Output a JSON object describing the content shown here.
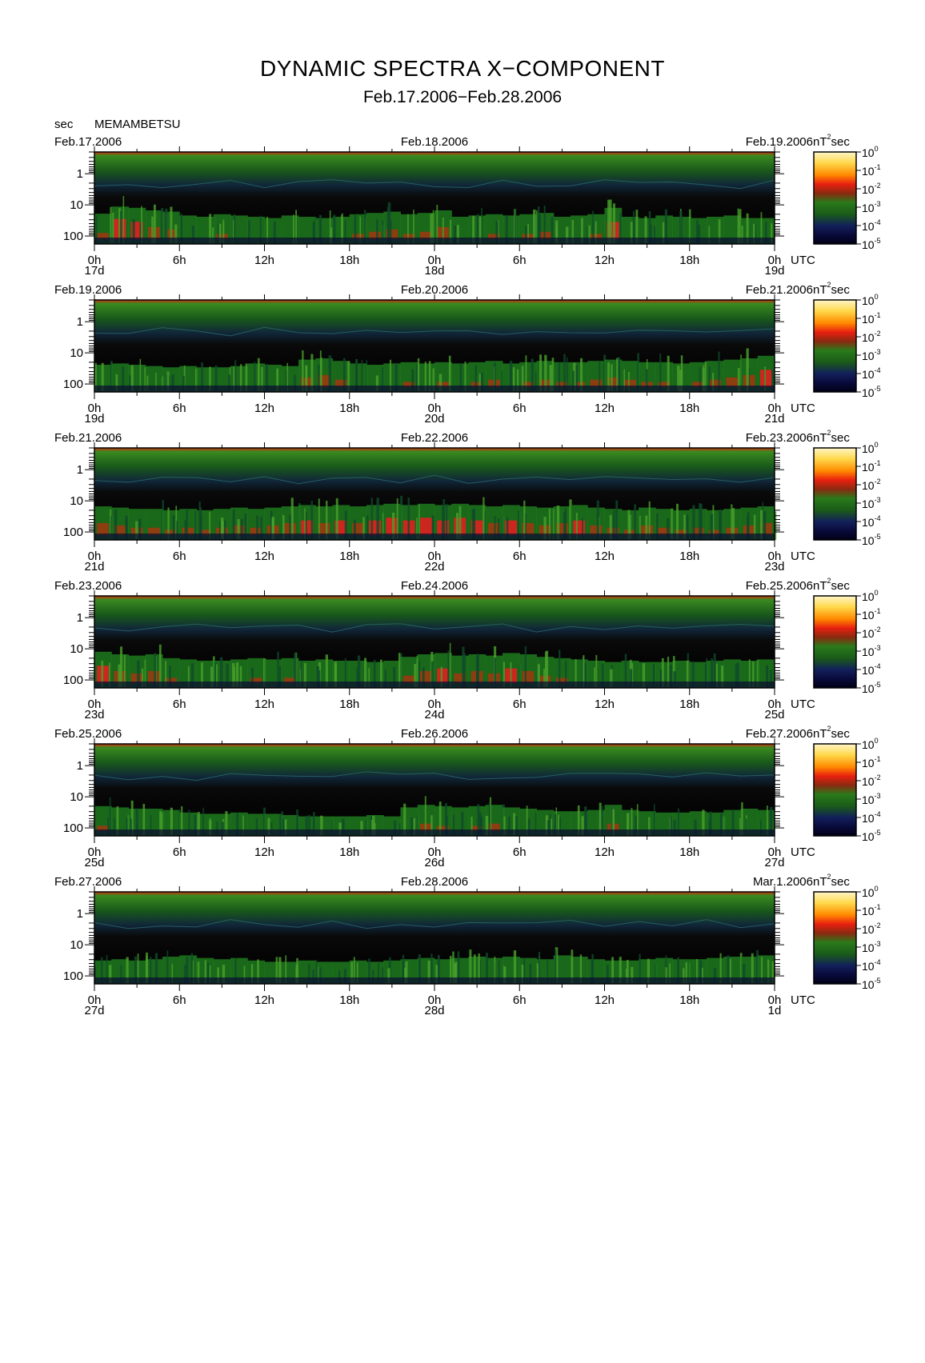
{
  "title": "DYNAMIC SPECTRA X−COMPONENT",
  "subtitle": "Feb.17.2006−Feb.28.2006",
  "y_unit_label": "sec",
  "station": "MEMAMBETSU",
  "colorbar_unit": "nT",
  "colorbar_unit_exp": "2",
  "colorbar_unit_suffix": "sec",
  "x_unit_label": "UTC",
  "colors": {
    "background": "#000000",
    "colormap": [
      "#0a0a3c",
      "#12205a",
      "#0f4a2a",
      "#1f7a1f",
      "#4aa02a",
      "#9a3a10",
      "#e02020",
      "#ff6a00",
      "#ffb000",
      "#ffe070",
      "#fff6c8"
    ]
  },
  "chart_data": [
    {
      "type": "heatmap",
      "left_date": "Feb.17.2006",
      "mid_date": "Feb.18.2006",
      "right_date": "Feb.19.2006",
      "x_ticks": [
        "0h",
        "6h",
        "12h",
        "18h",
        "0h",
        "6h",
        "12h",
        "18h",
        "0h"
      ],
      "day_labels": [
        "17d",
        "18d",
        "19d"
      ],
      "y_ticks": [
        "1",
        "10",
        "100"
      ],
      "ylim": [
        0.2,
        180
      ],
      "colorbar_ticks": [
        "10^0",
        "10^-1",
        "10^-2",
        "10^-3",
        "10^-4",
        "10^-5"
      ],
      "activity": [
        0.62,
        0.9,
        0.85,
        0.75,
        0.7,
        0.55,
        0.5,
        0.6,
        0.55,
        0.5,
        0.45,
        0.55,
        0.5,
        0.45,
        0.5,
        0.6,
        0.65,
        0.7,
        0.6,
        0.65,
        0.75,
        0.5,
        0.55,
        0.6,
        0.55,
        0.6,
        0.65,
        0.5,
        0.55,
        0.6,
        0.85,
        0.5,
        0.45,
        0.55,
        0.5,
        0.45,
        0.5,
        0.55,
        0.45,
        0.45
      ]
    },
    {
      "type": "heatmap",
      "left_date": "Feb.19.2006",
      "mid_date": "Feb.20.2006",
      "right_date": "Feb.21.2006",
      "x_ticks": [
        "0h",
        "6h",
        "12h",
        "18h",
        "0h",
        "6h",
        "12h",
        "18h",
        "0h"
      ],
      "day_labels": [
        "19d",
        "20d",
        "21d"
      ],
      "y_ticks": [
        "1",
        "10",
        "100"
      ],
      "ylim": [
        0.2,
        180
      ],
      "colorbar_ticks": [
        "10^0",
        "10^-1",
        "10^-2",
        "10^-3",
        "10^-4",
        "10^-5"
      ],
      "activity": [
        0.5,
        0.55,
        0.5,
        0.45,
        0.4,
        0.45,
        0.4,
        0.4,
        0.45,
        0.55,
        0.5,
        0.45,
        0.7,
        0.75,
        0.65,
        0.55,
        0.5,
        0.55,
        0.6,
        0.55,
        0.6,
        0.55,
        0.6,
        0.65,
        0.55,
        0.6,
        0.65,
        0.6,
        0.6,
        0.65,
        0.7,
        0.65,
        0.6,
        0.6,
        0.55,
        0.6,
        0.65,
        0.7,
        0.75,
        0.85
      ]
    },
    {
      "type": "heatmap",
      "left_date": "Feb.21.2006",
      "mid_date": "Feb.22.2006",
      "right_date": "Feb.23.2006",
      "x_ticks": [
        "0h",
        "6h",
        "12h",
        "18h",
        "0h",
        "6h",
        "12h",
        "18h",
        "0h"
      ],
      "day_labels": [
        "21d",
        "22d",
        "23d"
      ],
      "y_ticks": [
        "1",
        "10",
        "100"
      ],
      "ylim": [
        0.2,
        180
      ],
      "colorbar_ticks": [
        "10^0",
        "10^-1",
        "10^-2",
        "10^-3",
        "10^-4",
        "10^-5"
      ],
      "activity": [
        0.75,
        0.7,
        0.65,
        0.65,
        0.6,
        0.65,
        0.6,
        0.65,
        0.7,
        0.65,
        0.7,
        0.75,
        0.8,
        0.75,
        0.8,
        0.75,
        0.8,
        0.85,
        0.8,
        0.85,
        0.8,
        0.85,
        0.8,
        0.75,
        0.8,
        0.75,
        0.7,
        0.75,
        0.8,
        0.7,
        0.65,
        0.6,
        0.7,
        0.65,
        0.6,
        0.65,
        0.6,
        0.65,
        0.7,
        0.75
      ]
    },
    {
      "type": "heatmap",
      "left_date": "Feb.23.2006",
      "mid_date": "Feb.24.2006",
      "right_date": "Feb.25.2006",
      "x_ticks": [
        "0h",
        "6h",
        "12h",
        "18h",
        "0h",
        "6h",
        "12h",
        "18h",
        "0h"
      ],
      "day_labels": [
        "23d",
        "24d",
        "25d"
      ],
      "y_ticks": [
        "1",
        "10",
        "100"
      ],
      "ylim": [
        0.2,
        180
      ],
      "colorbar_ticks": [
        "10^0",
        "10^-1",
        "10^-2",
        "10^-3",
        "10^-4",
        "10^-5"
      ],
      "activity": [
        0.85,
        0.75,
        0.7,
        0.75,
        0.6,
        0.55,
        0.5,
        0.5,
        0.55,
        0.6,
        0.55,
        0.6,
        0.5,
        0.55,
        0.5,
        0.5,
        0.45,
        0.5,
        0.65,
        0.75,
        0.8,
        0.7,
        0.75,
        0.7,
        0.8,
        0.75,
        0.65,
        0.6,
        0.55,
        0.5,
        0.45,
        0.5,
        0.45,
        0.45,
        0.5,
        0.45,
        0.5,
        0.55,
        0.5,
        0.55
      ]
    },
    {
      "type": "heatmap",
      "left_date": "Feb.25.2006",
      "mid_date": "Feb.26.2006",
      "right_date": "Feb.27.2006",
      "x_ticks": [
        "0h",
        "6h",
        "12h",
        "18h",
        "0h",
        "6h",
        "12h",
        "18h",
        "0h"
      ],
      "day_labels": [
        "25d",
        "26d",
        "27d"
      ],
      "y_ticks": [
        "1",
        "10",
        "100"
      ],
      "ylim": [
        0.2,
        180
      ],
      "colorbar_ticks": [
        "10^0",
        "10^-1",
        "10^-2",
        "10^-3",
        "10^-4",
        "10^-5"
      ],
      "activity": [
        0.6,
        0.55,
        0.5,
        0.5,
        0.45,
        0.35,
        0.3,
        0.3,
        0.35,
        0.3,
        0.3,
        0.25,
        0.2,
        0.2,
        0.2,
        0.2,
        0.25,
        0.2,
        0.55,
        0.65,
        0.6,
        0.55,
        0.6,
        0.65,
        0.55,
        0.5,
        0.45,
        0.4,
        0.4,
        0.45,
        0.65,
        0.45,
        0.4,
        0.35,
        0.35,
        0.4,
        0.35,
        0.45,
        0.5,
        0.45
      ]
    },
    {
      "type": "heatmap",
      "left_date": "Feb.27.2006",
      "mid_date": "Feb.28.2006",
      "right_date": "Mar.1.2006",
      "x_ticks": [
        "0h",
        "6h",
        "12h",
        "18h",
        "0h",
        "6h",
        "12h",
        "18h",
        "0h"
      ],
      "day_labels": [
        "27d",
        "28d",
        "1d"
      ],
      "y_ticks": [
        "1",
        "10",
        "100"
      ],
      "ylim": [
        0.2,
        180
      ],
      "colorbar_ticks": [
        "10^0",
        "10^-1",
        "10^-2",
        "10^-3",
        "10^-4",
        "10^-5"
      ],
      "activity": [
        0.35,
        0.4,
        0.35,
        0.4,
        0.5,
        0.55,
        0.45,
        0.4,
        0.45,
        0.35,
        0.3,
        0.3,
        0.35,
        0.3,
        0.3,
        0.35,
        0.3,
        0.35,
        0.4,
        0.45,
        0.4,
        0.45,
        0.5,
        0.45,
        0.5,
        0.45,
        0.4,
        0.55,
        0.5,
        0.4,
        0.35,
        0.35,
        0.4,
        0.45,
        0.4,
        0.4,
        0.45,
        0.5,
        0.5,
        0.55
      ]
    }
  ]
}
